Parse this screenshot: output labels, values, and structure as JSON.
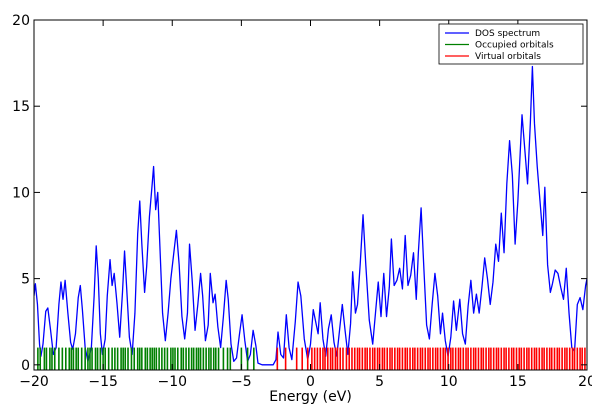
{
  "chart_data": {
    "type": "line",
    "title": "",
    "xlabel": "Energy (eV)",
    "ylabel": "",
    "xlim": [
      -20,
      20
    ],
    "ylim": [
      -0.3,
      20
    ],
    "x_ticks": [
      -20,
      -15,
      -10,
      -5,
      0,
      5,
      10,
      15,
      20
    ],
    "x_tick_labels": [
      "−20",
      "−15",
      "−10",
      "−5",
      "0",
      "5",
      "10",
      "15",
      "20"
    ],
    "y_ticks": [
      0,
      5,
      10,
      15,
      20
    ],
    "y_tick_labels": [
      "0",
      "5",
      "10",
      "15",
      "20"
    ],
    "grid": false,
    "legend_position": "top-right",
    "series": [
      {
        "name": "DOS spectrum",
        "kind": "line",
        "color": "#0000ff",
        "points": [
          [
            -20.0,
            4.0
          ],
          [
            -19.9,
            4.7
          ],
          [
            -19.75,
            3.5
          ],
          [
            -19.6,
            1.2
          ],
          [
            -19.5,
            0.5
          ],
          [
            -19.35,
            1.2
          ],
          [
            -19.15,
            3.1
          ],
          [
            -19.0,
            3.3
          ],
          [
            -18.8,
            2.0
          ],
          [
            -18.6,
            0.6
          ],
          [
            -18.4,
            1.0
          ],
          [
            -18.2,
            3.5
          ],
          [
            -18.05,
            4.8
          ],
          [
            -17.9,
            3.8
          ],
          [
            -17.75,
            4.9
          ],
          [
            -17.55,
            3.0
          ],
          [
            -17.35,
            1.3
          ],
          [
            -17.2,
            0.9
          ],
          [
            -17.0,
            1.8
          ],
          [
            -16.8,
            3.9
          ],
          [
            -16.65,
            4.6
          ],
          [
            -16.5,
            3.2
          ],
          [
            -16.3,
            1.0
          ],
          [
            -16.1,
            0.2
          ],
          [
            -15.85,
            1.0
          ],
          [
            -15.65,
            4.0
          ],
          [
            -15.5,
            6.9
          ],
          [
            -15.35,
            5.0
          ],
          [
            -15.2,
            1.8
          ],
          [
            -15.05,
            0.6
          ],
          [
            -14.85,
            1.5
          ],
          [
            -14.7,
            4.0
          ],
          [
            -14.5,
            6.1
          ],
          [
            -14.35,
            4.6
          ],
          [
            -14.2,
            5.3
          ],
          [
            -14.0,
            3.6
          ],
          [
            -13.8,
            1.6
          ],
          [
            -13.6,
            4.2
          ],
          [
            -13.45,
            6.6
          ],
          [
            -13.3,
            4.5
          ],
          [
            -13.1,
            1.6
          ],
          [
            -12.9,
            0.6
          ],
          [
            -12.7,
            3.0
          ],
          [
            -12.5,
            7.6
          ],
          [
            -12.35,
            9.5
          ],
          [
            -12.2,
            7.0
          ],
          [
            -12.0,
            4.2
          ],
          [
            -11.85,
            5.7
          ],
          [
            -11.65,
            8.6
          ],
          [
            -11.45,
            10.5
          ],
          [
            -11.35,
            11.5
          ],
          [
            -11.2,
            9.0
          ],
          [
            -11.05,
            10.0
          ],
          [
            -10.9,
            7.0
          ],
          [
            -10.7,
            3.0
          ],
          [
            -10.5,
            1.4
          ],
          [
            -10.3,
            3.0
          ],
          [
            -10.1,
            5.0
          ],
          [
            -9.9,
            6.4
          ],
          [
            -9.7,
            7.8
          ],
          [
            -9.5,
            5.8
          ],
          [
            -9.3,
            2.8
          ],
          [
            -9.1,
            1.5
          ],
          [
            -8.9,
            3.0
          ],
          [
            -8.75,
            7.0
          ],
          [
            -8.55,
            4.8
          ],
          [
            -8.35,
            2.0
          ],
          [
            -8.15,
            3.5
          ],
          [
            -7.95,
            5.3
          ],
          [
            -7.8,
            4.0
          ],
          [
            -7.6,
            1.4
          ],
          [
            -7.4,
            2.3
          ],
          [
            -7.25,
            5.3
          ],
          [
            -7.05,
            3.6
          ],
          [
            -6.9,
            4.1
          ],
          [
            -6.7,
            2.2
          ],
          [
            -6.5,
            1.0
          ],
          [
            -6.3,
            2.8
          ],
          [
            -6.1,
            4.9
          ],
          [
            -5.95,
            3.8
          ],
          [
            -5.75,
            1.2
          ],
          [
            -5.55,
            0.2
          ],
          [
            -5.35,
            0.4
          ],
          [
            -5.15,
            1.7
          ],
          [
            -4.95,
            2.9
          ],
          [
            -4.75,
            1.4
          ],
          [
            -4.55,
            0.2
          ],
          [
            -4.35,
            0.6
          ],
          [
            -4.15,
            2.0
          ],
          [
            -3.95,
            1.1
          ],
          [
            -3.8,
            0.1
          ],
          [
            -3.5,
            0.0
          ],
          [
            -2.7,
            0.0
          ],
          [
            -2.5,
            0.3
          ],
          [
            -2.35,
            1.9
          ],
          [
            -2.15,
            0.6
          ],
          [
            -1.95,
            0.4
          ],
          [
            -1.75,
            2.9
          ],
          [
            -1.55,
            1.0
          ],
          [
            -1.35,
            0.3
          ],
          [
            -1.1,
            2.5
          ],
          [
            -0.9,
            4.8
          ],
          [
            -0.7,
            4.0
          ],
          [
            -0.45,
            1.5
          ],
          [
            -0.2,
            0.3
          ],
          [
            0.0,
            1.2
          ],
          [
            0.2,
            3.2
          ],
          [
            0.4,
            2.4
          ],
          [
            0.55,
            1.8
          ],
          [
            0.7,
            3.6
          ],
          [
            0.9,
            1.5
          ],
          [
            1.1,
            0.5
          ],
          [
            1.3,
            2.1
          ],
          [
            1.5,
            2.9
          ],
          [
            1.7,
            1.3
          ],
          [
            1.9,
            0.5
          ],
          [
            2.1,
            2.0
          ],
          [
            2.3,
            3.5
          ],
          [
            2.5,
            2.0
          ],
          [
            2.7,
            0.6
          ],
          [
            2.9,
            2.4
          ],
          [
            3.05,
            5.4
          ],
          [
            3.25,
            3.0
          ],
          [
            3.4,
            3.5
          ],
          [
            3.6,
            5.9
          ],
          [
            3.8,
            8.7
          ],
          [
            4.0,
            5.8
          ],
          [
            4.25,
            2.6
          ],
          [
            4.5,
            1.2
          ],
          [
            4.7,
            3.0
          ],
          [
            4.9,
            4.8
          ],
          [
            5.1,
            2.8
          ],
          [
            5.3,
            5.3
          ],
          [
            5.5,
            2.8
          ],
          [
            5.7,
            4.5
          ],
          [
            5.85,
            7.3
          ],
          [
            6.05,
            4.6
          ],
          [
            6.25,
            4.9
          ],
          [
            6.45,
            5.6
          ],
          [
            6.65,
            4.4
          ],
          [
            6.85,
            7.5
          ],
          [
            7.05,
            4.6
          ],
          [
            7.25,
            5.2
          ],
          [
            7.45,
            6.5
          ],
          [
            7.65,
            3.8
          ],
          [
            7.8,
            6.5
          ],
          [
            8.0,
            9.1
          ],
          [
            8.2,
            5.6
          ],
          [
            8.4,
            2.3
          ],
          [
            8.6,
            1.5
          ],
          [
            8.8,
            3.5
          ],
          [
            9.0,
            5.3
          ],
          [
            9.2,
            4.0
          ],
          [
            9.4,
            1.8
          ],
          [
            9.55,
            3.0
          ],
          [
            9.75,
            1.4
          ],
          [
            9.95,
            0.5
          ],
          [
            10.15,
            1.6
          ],
          [
            10.35,
            3.7
          ],
          [
            10.55,
            2.0
          ],
          [
            10.8,
            3.8
          ],
          [
            11.0,
            1.8
          ],
          [
            11.2,
            1.2
          ],
          [
            11.4,
            3.4
          ],
          [
            11.6,
            4.9
          ],
          [
            11.8,
            3.0
          ],
          [
            12.0,
            4.1
          ],
          [
            12.2,
            3.0
          ],
          [
            12.4,
            4.5
          ],
          [
            12.6,
            6.2
          ],
          [
            12.8,
            5.0
          ],
          [
            13.0,
            3.5
          ],
          [
            13.2,
            4.8
          ],
          [
            13.4,
            7.0
          ],
          [
            13.6,
            6.0
          ],
          [
            13.8,
            8.8
          ],
          [
            14.0,
            6.5
          ],
          [
            14.2,
            10.5
          ],
          [
            14.4,
            13.0
          ],
          [
            14.6,
            11.0
          ],
          [
            14.8,
            7.0
          ],
          [
            15.0,
            9.5
          ],
          [
            15.3,
            14.5
          ],
          [
            15.5,
            12.5
          ],
          [
            15.7,
            10.5
          ],
          [
            15.9,
            14.0
          ],
          [
            16.05,
            17.3
          ],
          [
            16.2,
            14.0
          ],
          [
            16.4,
            11.5
          ],
          [
            16.6,
            9.5
          ],
          [
            16.8,
            7.5
          ],
          [
            16.95,
            10.3
          ],
          [
            17.15,
            5.8
          ],
          [
            17.35,
            4.2
          ],
          [
            17.5,
            4.7
          ],
          [
            17.7,
            5.5
          ],
          [
            17.9,
            5.3
          ],
          [
            18.1,
            4.5
          ],
          [
            18.3,
            3.8
          ],
          [
            18.5,
            5.6
          ],
          [
            18.7,
            3.0
          ],
          [
            18.9,
            1.0
          ],
          [
            19.1,
            0.8
          ],
          [
            19.3,
            3.5
          ],
          [
            19.5,
            3.9
          ],
          [
            19.7,
            3.2
          ],
          [
            19.9,
            4.6
          ],
          [
            20.0,
            5.0
          ]
        ]
      },
      {
        "name": "Occupied orbitals",
        "kind": "ticks",
        "color": "#008000",
        "tick_height": 1.0,
        "x": [
          -19.72,
          -19.55,
          -19.25,
          -19.1,
          -18.85,
          -18.7,
          -18.5,
          -18.2,
          -17.95,
          -17.7,
          -17.45,
          -17.3,
          -17.15,
          -16.95,
          -16.8,
          -16.55,
          -16.3,
          -16.1,
          -15.95,
          -15.8,
          -15.55,
          -15.4,
          -15.2,
          -15.0,
          -14.85,
          -14.6,
          -14.35,
          -14.15,
          -13.95,
          -13.7,
          -13.55,
          -13.4,
          -13.2,
          -12.95,
          -12.75,
          -12.5,
          -12.35,
          -12.2,
          -11.95,
          -11.8,
          -11.6,
          -11.45,
          -11.3,
          -11.15,
          -10.95,
          -10.75,
          -10.55,
          -10.35,
          -10.1,
          -9.95,
          -9.8,
          -9.6,
          -9.35,
          -9.2,
          -9.0,
          -8.8,
          -8.6,
          -8.45,
          -8.25,
          -8.1,
          -7.95,
          -7.75,
          -7.55,
          -7.35,
          -7.2,
          -7.0,
          -6.85,
          -6.65,
          -6.3,
          -6.0,
          -5.8,
          -5.0,
          -4.55,
          -4.1
        ]
      },
      {
        "name": "Virtual orbitals",
        "kind": "ticks",
        "color": "#ff0000",
        "tick_height": 1.0,
        "x": [
          -2.4,
          -1.8,
          -1.0,
          -0.6,
          -0.2,
          0.1,
          0.3,
          0.5,
          0.7,
          0.9,
          1.05,
          1.25,
          1.45,
          1.6,
          1.8,
          1.95,
          2.15,
          2.35,
          2.6,
          2.8,
          3.0,
          3.2,
          3.4,
          3.55,
          3.75,
          3.95,
          4.1,
          4.3,
          4.5,
          4.65,
          4.85,
          5.0,
          5.2,
          5.35,
          5.55,
          5.75,
          5.9,
          6.1,
          6.3,
          6.45,
          6.65,
          6.85,
          7.0,
          7.2,
          7.4,
          7.55,
          7.75,
          7.95,
          8.1,
          8.3,
          8.5,
          8.65,
          8.85,
          9.05,
          9.2,
          9.4,
          9.6,
          9.75,
          9.95,
          10.15,
          10.3,
          10.5,
          10.7,
          10.85,
          11.05,
          11.25,
          11.4,
          11.6,
          11.8,
          11.95,
          12.15,
          12.35,
          12.5,
          12.7,
          12.9,
          13.05,
          13.25,
          13.45,
          13.6,
          13.8,
          14.0,
          14.15,
          14.35,
          14.55,
          14.7,
          14.9,
          15.1,
          15.25,
          15.45,
          15.65,
          15.8,
          16.0,
          16.2,
          16.35,
          16.55,
          16.75,
          16.9,
          17.1,
          17.3,
          17.45,
          17.65,
          17.85,
          18.0,
          18.2,
          18.4,
          18.55,
          18.75,
          18.95,
          19.1,
          19.3,
          19.5,
          19.65,
          19.85
        ]
      }
    ]
  }
}
